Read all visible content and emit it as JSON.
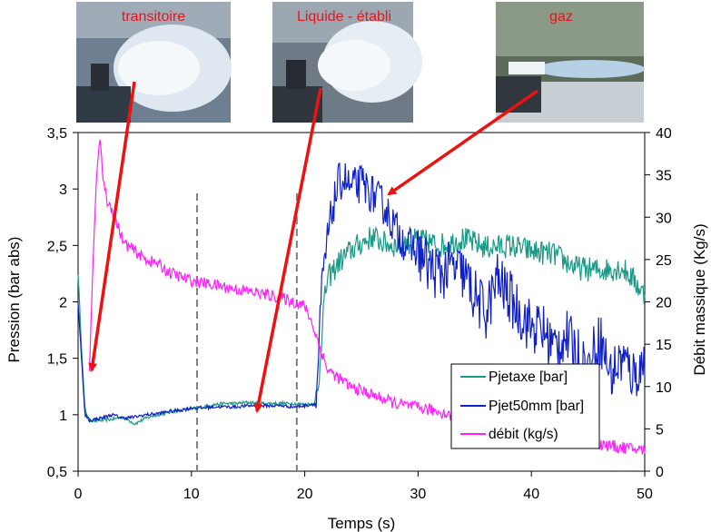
{
  "photos": [
    {
      "caption": "transitoire",
      "scene": "transient-spray"
    },
    {
      "caption": "Liquide - établi",
      "scene": "established-liquid-spray"
    },
    {
      "caption": "gaz",
      "scene": "gas-jet"
    }
  ],
  "colors": {
    "pjetaxe": "#1a9a86",
    "pjet50": "#1020c8",
    "debit": "#ff20ff",
    "arrows": "#ee1111",
    "caption": "#e8141c",
    "dashes": "#808080"
  },
  "chart_data": {
    "type": "line",
    "xlabel": "Temps (s)",
    "ylabel": "Pression (bar abs)",
    "y2label": "Débit massique (Kg/s)",
    "xlim": [
      0,
      50
    ],
    "ylim": [
      0.5,
      3.5
    ],
    "y2lim": [
      0,
      40
    ],
    "xticks": [
      "0",
      "10",
      "20",
      "30",
      "40",
      "50"
    ],
    "yticks": [
      "0,5",
      "1",
      "1,5",
      "2",
      "2,5",
      "3",
      "3,5"
    ],
    "y2ticks": [
      "0",
      "5",
      "10",
      "15",
      "20",
      "25",
      "30",
      "35",
      "40"
    ],
    "vlines": [
      10.5,
      19.3
    ],
    "legend_position": "lower-right",
    "series": [
      {
        "name": "Pjetaxe [bar]",
        "axis": "left",
        "x": [
          0,
          0.3,
          0.6,
          1,
          2,
          3,
          4,
          5,
          6,
          7,
          8,
          9,
          10,
          11,
          12,
          13,
          14,
          15,
          16,
          17,
          18,
          19,
          20,
          20.8,
          21.2,
          21.6,
          22,
          23,
          24,
          25,
          26,
          27,
          28,
          29,
          30,
          32,
          34,
          36,
          38,
          40,
          42,
          44,
          46,
          48,
          49,
          50
        ],
        "y": [
          2.25,
          1.6,
          1.05,
          0.95,
          0.95,
          0.96,
          0.98,
          0.92,
          0.97,
          1.0,
          1.02,
          1.04,
          1.05,
          1.07,
          1.09,
          1.1,
          1.1,
          1.11,
          1.1,
          1.1,
          1.1,
          1.1,
          1.09,
          1.1,
          1.2,
          1.9,
          2.2,
          2.35,
          2.45,
          2.52,
          2.58,
          2.52,
          2.5,
          2.52,
          2.55,
          2.5,
          2.56,
          2.48,
          2.5,
          2.45,
          2.42,
          2.3,
          2.28,
          2.3,
          2.2,
          2.05
        ]
      },
      {
        "name": "Pjet50mm [bar]",
        "axis": "left",
        "x": [
          0,
          0.3,
          0.6,
          1,
          2,
          3,
          4,
          5,
          6,
          7,
          8,
          9,
          10,
          11,
          12,
          13,
          14,
          15,
          16,
          17,
          18,
          19,
          20,
          21,
          21.5,
          22,
          22.5,
          23,
          23.5,
          24,
          25,
          26,
          27,
          28,
          29,
          30,
          31,
          32,
          33,
          34,
          35,
          36,
          37,
          38,
          39,
          40,
          41,
          42,
          43,
          44,
          45,
          46,
          47,
          48,
          49,
          50
        ],
        "y": [
          2.0,
          1.5,
          1.0,
          0.95,
          0.97,
          1.0,
          0.97,
          0.98,
          1.0,
          1.01,
          1.03,
          1.04,
          1.06,
          1.06,
          1.07,
          1.07,
          1.07,
          1.08,
          1.08,
          1.08,
          1.08,
          1.07,
          1.08,
          1.1,
          2.1,
          2.55,
          2.85,
          3.05,
          3.1,
          3.0,
          3.05,
          2.95,
          2.85,
          2.65,
          2.5,
          2.45,
          2.3,
          2.25,
          2.3,
          2.25,
          2.05,
          1.9,
          2.2,
          2.05,
          1.9,
          1.78,
          1.75,
          1.6,
          1.7,
          1.55,
          1.4,
          1.7,
          1.35,
          1.5,
          1.35,
          1.45
        ]
      },
      {
        "name": "débit (kg/s)",
        "axis": "right",
        "x": [
          1,
          1.3,
          1.6,
          1.9,
          2.1,
          2.5,
          3,
          3.5,
          4,
          5,
          6,
          7,
          8,
          10,
          12,
          14,
          16,
          18,
          19,
          20,
          20.5,
          21,
          21.5,
          22,
          23,
          24,
          26,
          28,
          30,
          32,
          34,
          36,
          38,
          40,
          42,
          44,
          46,
          48,
          50
        ],
        "y": [
          12,
          24,
          34,
          39.5,
          36,
          32,
          31,
          29,
          27,
          26,
          25,
          24.5,
          23.5,
          22.5,
          22,
          21.5,
          21,
          20.5,
          20,
          19.5,
          18,
          16,
          14,
          12,
          11,
          10,
          9,
          8,
          7.5,
          7,
          6,
          5.5,
          5,
          4.5,
          4,
          3.5,
          3.2,
          2.8,
          2.5
        ]
      }
    ]
  }
}
